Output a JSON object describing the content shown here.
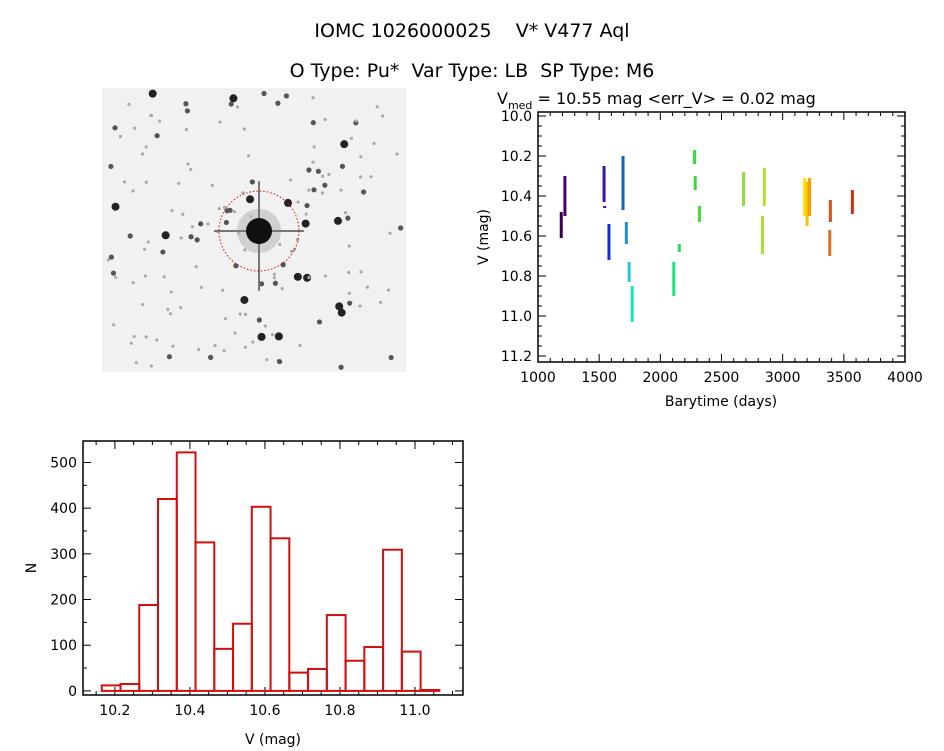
{
  "title": "IOMC 1026000025    V* V477 Aql",
  "subtitle": "O Type: Pu*  Var Type: LB  SP Type: M6",
  "image_panel": {
    "description_icon": "sky-image-star-field",
    "circle_color": "#d01010"
  },
  "chart_data": [
    {
      "type": "scatter",
      "title_parts": {
        "v": "V",
        "sub": "med",
        "rest": " = 10.55 mag <err_V> = 0.02 mag"
      },
      "xlabel": "Barytime (days)",
      "ylabel": "V (mag)",
      "xlim": [
        1000,
        4000
      ],
      "ylim": [
        11.23,
        9.98
      ],
      "y_inverted": true,
      "xticks": [
        1000,
        1500,
        2000,
        2500,
        3000,
        3500,
        4000
      ],
      "yticks": [
        "10.0",
        "10.2",
        "10.4",
        "10.6",
        "10.8",
        "11.0",
        "11.2"
      ],
      "segments": [
        {
          "x": 1190,
          "ymin": 10.48,
          "ymax": 10.61,
          "color": "#3c0050"
        },
        {
          "x": 1220,
          "ymin": 10.3,
          "ymax": 10.5,
          "color": "#4b0068"
        },
        {
          "x": 1540,
          "ymin": 10.25,
          "ymax": 10.43,
          "color": "#3a18b0"
        },
        {
          "x": 1545,
          "ymin": 10.45,
          "ymax": 10.46,
          "color": "#3a18b0"
        },
        {
          "x": 1580,
          "ymin": 10.54,
          "ymax": 10.72,
          "color": "#1030d0"
        },
        {
          "x": 1695,
          "ymin": 10.2,
          "ymax": 10.47,
          "color": "#1060d0"
        },
        {
          "x": 1722,
          "ymin": 10.53,
          "ymax": 10.64,
          "color": "#2090e0"
        },
        {
          "x": 1745,
          "ymin": 10.73,
          "ymax": 10.83,
          "color": "#20c8e0"
        },
        {
          "x": 1770,
          "ymin": 10.85,
          "ymax": 11.03,
          "color": "#20e0c0"
        },
        {
          "x": 2110,
          "ymin": 10.73,
          "ymax": 10.9,
          "color": "#20e080"
        },
        {
          "x": 2155,
          "ymin": 10.64,
          "ymax": 10.68,
          "color": "#20e060"
        },
        {
          "x": 2280,
          "ymin": 10.17,
          "ymax": 10.24,
          "color": "#30e030"
        },
        {
          "x": 2285,
          "ymin": 10.3,
          "ymax": 10.37,
          "color": "#30e030"
        },
        {
          "x": 2320,
          "ymin": 10.45,
          "ymax": 10.53,
          "color": "#40e030"
        },
        {
          "x": 2680,
          "ymin": 10.28,
          "ymax": 10.45,
          "color": "#90e030"
        },
        {
          "x": 2835,
          "ymin": 10.5,
          "ymax": 10.69,
          "color": "#a8e030"
        },
        {
          "x": 2850,
          "ymin": 10.26,
          "ymax": 10.45,
          "color": "#b0e030"
        },
        {
          "x": 3180,
          "ymin": 10.31,
          "ymax": 10.5,
          "color": "#ffe000"
        },
        {
          "x": 3200,
          "ymin": 10.33,
          "ymax": 10.55,
          "color": "#f8c000"
        },
        {
          "x": 3220,
          "ymin": 10.31,
          "ymax": 10.5,
          "color": "#f0a000"
        },
        {
          "x": 3390,
          "ymin": 10.42,
          "ymax": 10.53,
          "color": "#e05010"
        },
        {
          "x": 3385,
          "ymin": 10.57,
          "ymax": 10.7,
          "color": "#e07020"
        },
        {
          "x": 3570,
          "ymin": 10.37,
          "ymax": 10.49,
          "color": "#d03010"
        }
      ]
    },
    {
      "type": "bar",
      "histogram": true,
      "xlabel": "V (mag)",
      "ylabel": "N",
      "xlim": [
        10.115,
        11.128
      ],
      "ylim": [
        -9,
        547
      ],
      "xticks": [
        "10.2",
        "10.4",
        "10.6",
        "10.8",
        "11.0"
      ],
      "yticks": [
        "0",
        "100",
        "200",
        "300",
        "400",
        "500"
      ],
      "bin_start": 10.165,
      "bin_width": 0.05,
      "values": [
        12,
        15,
        188,
        420,
        522,
        325,
        92,
        147,
        403,
        334,
        40,
        48,
        166,
        66,
        96,
        309,
        86,
        2
      ],
      "color": "#d01010"
    }
  ]
}
